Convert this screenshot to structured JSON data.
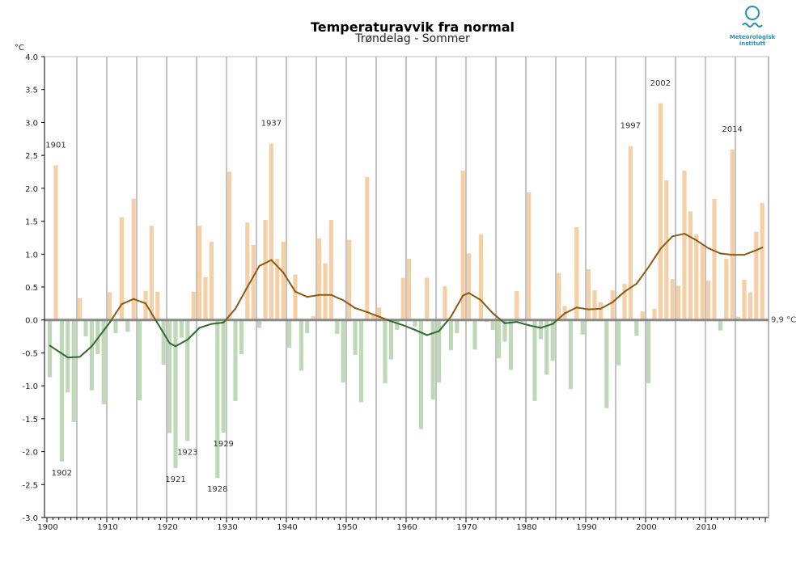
{
  "chart_data": {
    "type": "bar",
    "title": "Temperaturavvik fra normal",
    "subtitle": "Trøndelag - Sommer",
    "y_unit": "°C",
    "baseline_label": "9,9 °C",
    "ylim": [
      -3.0,
      4.0
    ],
    "xlim": [
      1900,
      2020
    ],
    "yticks": [
      -3.0,
      -2.5,
      -2.0,
      -1.5,
      -1.0,
      -0.5,
      0.0,
      0.5,
      1.0,
      1.5,
      2.0,
      2.5,
      3.0,
      3.5,
      4.0
    ],
    "ytick_labels": [
      "-3.0",
      "-2.5",
      "-2.0",
      "-1.5",
      "-1.0",
      "-0.5",
      "0.0",
      "0.5",
      "1.0",
      "1.5",
      "2.0",
      "2.5",
      "3.0",
      "3.5",
      "4.0"
    ],
    "xticks": [
      1900,
      1910,
      1920,
      1930,
      1940,
      1950,
      1960,
      1970,
      1980,
      1990,
      2000,
      2010
    ],
    "grid": "vertical lines every 5 years",
    "colors": {
      "positive": "#f5cfa6",
      "negative": "#bfd8b8",
      "smooth_positive": "#8b5a14",
      "smooth_negative": "#2e6b2e",
      "baseline": "#888888"
    },
    "years": [
      1900,
      1901,
      1902,
      1903,
      1904,
      1905,
      1906,
      1907,
      1908,
      1909,
      1910,
      1911,
      1912,
      1913,
      1914,
      1915,
      1916,
      1917,
      1918,
      1919,
      1920,
      1921,
      1922,
      1923,
      1924,
      1925,
      1926,
      1927,
      1928,
      1929,
      1930,
      1931,
      1932,
      1933,
      1934,
      1935,
      1936,
      1937,
      1938,
      1939,
      1940,
      1941,
      1942,
      1943,
      1944,
      1945,
      1946,
      1947,
      1948,
      1949,
      1950,
      1951,
      1952,
      1953,
      1954,
      1955,
      1956,
      1957,
      1958,
      1959,
      1960,
      1961,
      1962,
      1963,
      1964,
      1965,
      1966,
      1967,
      1968,
      1969,
      1970,
      1971,
      1972,
      1973,
      1974,
      1975,
      1976,
      1977,
      1978,
      1979,
      1980,
      1981,
      1982,
      1983,
      1984,
      1985,
      1986,
      1987,
      1988,
      1989,
      1990,
      1991,
      1992,
      1993,
      1994,
      1995,
      1996,
      1997,
      1998,
      1999,
      2000,
      2001,
      2002,
      2003,
      2004,
      2005,
      2006,
      2007,
      2008,
      2009,
      2010,
      2011,
      2012,
      2013,
      2014,
      2015,
      2016,
      2017,
      2018,
      2019
    ],
    "values": [
      -0.87,
      2.35,
      -2.15,
      -1.1,
      -1.55,
      0.33,
      -0.25,
      -1.07,
      -0.52,
      -1.28,
      0.42,
      -0.2,
      1.56,
      -0.18,
      1.84,
      -1.22,
      0.44,
      1.43,
      0.43,
      -0.68,
      -1.72,
      -2.25,
      -0.27,
      -1.84,
      0.43,
      1.43,
      0.65,
      1.19,
      -2.4,
      -1.71,
      2.25,
      -1.23,
      -0.52,
      1.48,
      1.14,
      -0.12,
      1.52,
      2.68,
      0.93,
      1.19,
      -0.42,
      0.69,
      -0.77,
      -0.2,
      0.06,
      1.24,
      0.86,
      1.52,
      -0.21,
      -0.95,
      1.22,
      -0.53,
      -1.25,
      2.17,
      0.08,
      0.19,
      -0.96,
      -0.6,
      -0.15,
      0.64,
      0.93,
      -0.1,
      -1.66,
      0.64,
      -1.21,
      -0.95,
      0.51,
      -0.46,
      -0.2,
      2.27,
      1.01,
      -0.45,
      1.3,
      -0.03,
      -0.15,
      -0.58,
      -0.33,
      -0.76,
      0.44,
      -0.03,
      1.94,
      -1.23,
      -0.29,
      -0.83,
      -0.62,
      0.71,
      0.21,
      -1.05,
      1.41,
      -0.22,
      0.77,
      0.45,
      0.27,
      -1.34,
      0.45,
      -0.69,
      0.55,
      2.64,
      -0.24,
      0.13,
      -0.96,
      0.17,
      3.29,
      2.12,
      0.62,
      0.52,
      2.27,
      1.65,
      1.3,
      1.14,
      0.6,
      1.84,
      -0.16,
      0.93,
      2.59,
      0.05,
      0.61,
      0.42,
      1.34,
      1.78
    ],
    "smooth": [
      [
        1900,
        -0.39
      ],
      [
        1903,
        -0.57
      ],
      [
        1905,
        -0.56
      ],
      [
        1907,
        -0.4
      ],
      [
        1910,
        -0.04
      ],
      [
        1912,
        0.24
      ],
      [
        1914,
        0.32
      ],
      [
        1916,
        0.25
      ],
      [
        1918,
        -0.05
      ],
      [
        1920,
        -0.35
      ],
      [
        1921,
        -0.4
      ],
      [
        1923,
        -0.3
      ],
      [
        1925,
        -0.12
      ],
      [
        1927,
        -0.06
      ],
      [
        1929,
        -0.04
      ],
      [
        1931,
        0.17
      ],
      [
        1933,
        0.5
      ],
      [
        1935,
        0.82
      ],
      [
        1937,
        0.91
      ],
      [
        1939,
        0.72
      ],
      [
        1941,
        0.43
      ],
      [
        1943,
        0.35
      ],
      [
        1945,
        0.38
      ],
      [
        1947,
        0.38
      ],
      [
        1949,
        0.3
      ],
      [
        1951,
        0.18
      ],
      [
        1953,
        0.12
      ],
      [
        1955,
        0.05
      ],
      [
        1957,
        -0.02
      ],
      [
        1959,
        -0.08
      ],
      [
        1961,
        -0.15
      ],
      [
        1963,
        -0.23
      ],
      [
        1965,
        -0.17
      ],
      [
        1967,
        0.05
      ],
      [
        1969,
        0.37
      ],
      [
        1970,
        0.41
      ],
      [
        1972,
        0.3
      ],
      [
        1974,
        0.1
      ],
      [
        1976,
        -0.05
      ],
      [
        1978,
        -0.03
      ],
      [
        1980,
        -0.08
      ],
      [
        1982,
        -0.12
      ],
      [
        1984,
        -0.06
      ],
      [
        1986,
        0.1
      ],
      [
        1988,
        0.19
      ],
      [
        1990,
        0.16
      ],
      [
        1992,
        0.17
      ],
      [
        1994,
        0.27
      ],
      [
        1996,
        0.43
      ],
      [
        1998,
        0.55
      ],
      [
        2000,
        0.8
      ],
      [
        2002,
        1.08
      ],
      [
        2004,
        1.27
      ],
      [
        2006,
        1.31
      ],
      [
        2008,
        1.21
      ],
      [
        2010,
        1.09
      ],
      [
        2012,
        1.01
      ],
      [
        2014,
        0.99
      ],
      [
        2016,
        0.99
      ],
      [
        2018,
        1.06
      ],
      [
        2019,
        1.1
      ]
    ],
    "annotations": [
      {
        "label": "1901",
        "year": 1901,
        "value": 2.35
      },
      {
        "label": "1902",
        "year": 1902,
        "value": -2.15
      },
      {
        "label": "1921",
        "year": 1921,
        "value": -2.25
      },
      {
        "label": "1923",
        "year": 1923,
        "value": -1.84
      },
      {
        "label": "1928",
        "year": 1928,
        "value": -2.4
      },
      {
        "label": "1929",
        "year": 1929,
        "value": -1.71
      },
      {
        "label": "1937",
        "year": 1937,
        "value": 2.68
      },
      {
        "label": "1997",
        "year": 1997,
        "value": 2.64
      },
      {
        "label": "2002",
        "year": 2002,
        "value": 3.29
      },
      {
        "label": "2014",
        "year": 2014,
        "value": 2.59
      }
    ]
  },
  "logo": {
    "icon": "met-logo-icon",
    "line1": "Meteorologisk",
    "line2": "institutt",
    "color": "#2a8fb0"
  }
}
